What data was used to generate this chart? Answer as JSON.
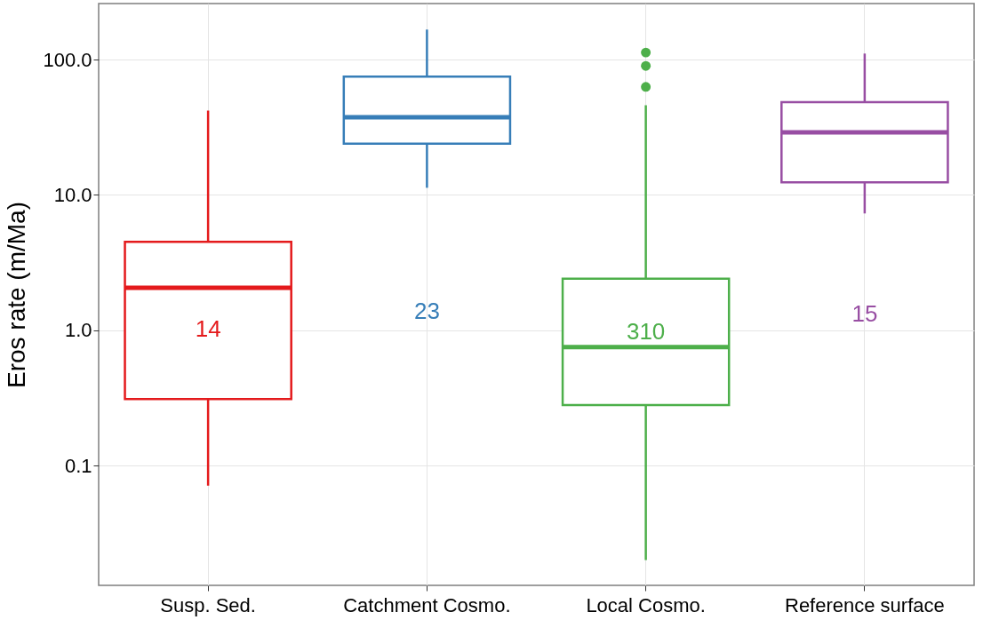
{
  "chart_data": {
    "type": "box",
    "ylabel": "Eros rate (m/Ma)",
    "categories": [
      "Susp. Sed.",
      "Catchment Cosmo.",
      "Local Cosmo.",
      "Reference surface"
    ],
    "boxes": [
      {
        "low": 0.071,
        "q1": 0.31,
        "median": 2.06,
        "q3": 4.5,
        "high": 42
      },
      {
        "low": 11.3,
        "q1": 23.9,
        "median": 37.6,
        "q3": 75,
        "high": 167
      },
      {
        "low": 0.02,
        "q1": 0.28,
        "median": 0.75,
        "q3": 2.4,
        "high": 46,
        "outliers": [
          113,
          90,
          63
        ]
      },
      {
        "low": 7.3,
        "q1": 12.4,
        "median": 29,
        "q3": 48.5,
        "high": 111
      }
    ],
    "colors": [
      "#e41a1c",
      "#377eb8",
      "#4daf4a",
      "#984ea3"
    ],
    "log": true,
    "ylim": [
      0.013,
      260
    ],
    "yticks": [
      {
        "value": 0.1,
        "label": "0.1"
      },
      {
        "value": 1,
        "label": "1.0"
      },
      {
        "value": 10,
        "label": "10.0"
      },
      {
        "value": 100,
        "label": "100.0"
      }
    ],
    "grid": true,
    "annotations": [
      "14",
      "23",
      "310",
      "15"
    ]
  }
}
